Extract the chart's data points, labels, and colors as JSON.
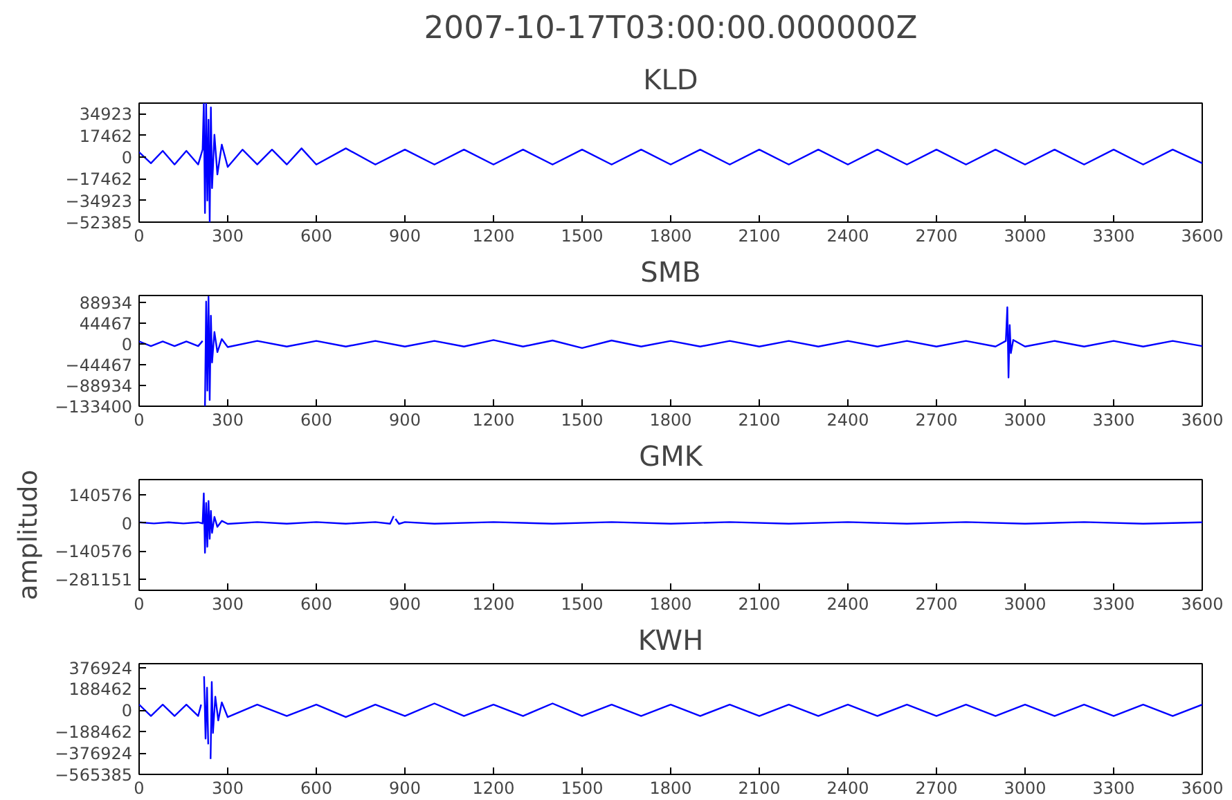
{
  "chart_data": [
    {
      "type": "line",
      "title": "KLD",
      "annotations": [
        "2007-10-17T03:00:00.000000Z"
      ],
      "xlim": [
        0,
        3600
      ],
      "xticks": [
        0,
        300,
        600,
        900,
        1200,
        1500,
        1800,
        2100,
        2400,
        2700,
        3000,
        3300,
        3600
      ],
      "ylim": [
        -52385,
        43400
      ],
      "yticks": [
        -52385,
        -34923,
        -17462,
        0,
        17462,
        34923
      ],
      "series": [
        {
          "color": "#0000ff",
          "x": [
            0,
            40,
            80,
            120,
            160,
            200,
            215,
            219,
            223,
            227,
            231,
            235,
            239,
            243,
            247,
            255,
            265,
            280,
            300,
            350,
            400,
            450,
            500,
            550,
            600,
            700,
            800,
            900,
            1000,
            1100,
            1200,
            1300,
            1400,
            1500,
            1600,
            1700,
            1800,
            1900,
            2000,
            2100,
            2200,
            2300,
            2400,
            2500,
            2600,
            2700,
            2800,
            2900,
            3000,
            3100,
            3200,
            3300,
            3400,
            3500,
            3600
          ],
          "values": [
            4000,
            -5000,
            5000,
            -6000,
            5000,
            -6000,
            6000,
            43000,
            -45000,
            43000,
            -35000,
            30000,
            -52000,
            40000,
            -25000,
            18000,
            -14000,
            10000,
            -8000,
            6000,
            -6000,
            6000,
            -6000,
            7000,
            -6000,
            7000,
            -6000,
            6000,
            -6000,
            6000,
            -6000,
            6000,
            -6000,
            6000,
            -6000,
            6000,
            -6000,
            6000,
            -6000,
            6000,
            -6000,
            6000,
            -6000,
            6000,
            -6000,
            6000,
            -6000,
            6000,
            -6000,
            6000,
            -6000,
            6000,
            -6000,
            6000,
            -5000
          ]
        }
      ]
    },
    {
      "type": "line",
      "title": "SMB",
      "xlim": [
        0,
        3600
      ],
      "xticks": [
        0,
        300,
        600,
        900,
        1200,
        1500,
        1800,
        2100,
        2400,
        2700,
        3000,
        3300,
        3600
      ],
      "ylim": [
        -133400,
        103000
      ],
      "yticks": [
        -133400,
        -88934,
        -44467,
        0,
        44467,
        88934
      ],
      "series": [
        {
          "color": "#0000ff",
          "x": [
            0,
            40,
            80,
            120,
            160,
            200,
            215,
            219,
            223,
            227,
            231,
            235,
            239,
            243,
            247,
            255,
            265,
            280,
            300,
            400,
            500,
            600,
            700,
            800,
            900,
            1000,
            1100,
            1200,
            1300,
            1400,
            1500,
            1600,
            1700,
            1800,
            1900,
            2000,
            2100,
            2200,
            2300,
            2400,
            2500,
            2600,
            2700,
            2800,
            2900,
            2935,
            2940,
            2944,
            2948,
            2952,
            2960,
            3000,
            3100,
            3200,
            3300,
            3400,
            3500,
            3600
          ],
          "values": [
            5000,
            -5000,
            5000,
            -5000,
            5000,
            -5000,
            6000,
            null,
            -133000,
            90000,
            -100000,
            100000,
            -120000,
            60000,
            -40000,
            25000,
            -18000,
            10000,
            -7000,
            6000,
            -6000,
            6000,
            -6000,
            6000,
            -6000,
            6000,
            -6000,
            8000,
            -6000,
            7000,
            -9000,
            7000,
            -6000,
            6000,
            -6000,
            6000,
            -6000,
            6000,
            -6000,
            6000,
            -6000,
            6000,
            -6000,
            6000,
            -6000,
            6000,
            78000,
            -72000,
            40000,
            -20000,
            8000,
            -6000,
            6000,
            -6000,
            6000,
            -6000,
            6000,
            -5000
          ]
        }
      ]
    },
    {
      "type": "line",
      "title": "GMK",
      "ylabel": "amplitudo",
      "xlim": [
        0,
        3600
      ],
      "xticks": [
        0,
        300,
        600,
        900,
        1200,
        1500,
        1800,
        2100,
        2400,
        2700,
        3000,
        3300,
        3600
      ],
      "ylim": [
        -338000,
        217000
      ],
      "yticks": [
        -281151,
        -140576,
        0,
        140576
      ],
      "series": [
        {
          "color": "#0000ff",
          "x": [
            0,
            50,
            100,
            150,
            200,
            215,
            219,
            223,
            227,
            231,
            235,
            239,
            243,
            247,
            255,
            265,
            280,
            300,
            400,
            500,
            600,
            700,
            800,
            850,
            862,
            865,
            868,
            880,
            900,
            1000,
            1200,
            1400,
            1600,
            1800,
            2000,
            2200,
            2400,
            2600,
            2800,
            3000,
            3200,
            3400,
            3600
          ],
          "values": [
            3000,
            -3000,
            3000,
            -3000,
            3000,
            -3000,
            148000,
            -150000,
            100000,
            -120000,
            110000,
            -80000,
            60000,
            -50000,
            30000,
            -20000,
            10000,
            -5000,
            4000,
            -4000,
            4000,
            -4000,
            4000,
            -4000,
            34000,
            null,
            20000,
            -5000,
            4000,
            -4000,
            4000,
            -4000,
            4000,
            -4000,
            4000,
            -4000,
            4000,
            -4000,
            4000,
            -4000,
            4000,
            -4000,
            3000
          ]
        }
      ]
    },
    {
      "type": "line",
      "title": "KWH",
      "xlim": [
        0,
        3600
      ],
      "xticks": [
        0,
        300,
        600,
        900,
        1200,
        1500,
        1800,
        2100,
        2400,
        2700,
        3000,
        3300,
        3600
      ],
      "ylim": [
        -565385,
        411000
      ],
      "yticks": [
        -565385,
        -376924,
        -188462,
        0,
        188462,
        376924
      ],
      "series": [
        {
          "color": "#0000ff",
          "x": [
            0,
            40,
            80,
            120,
            160,
            200,
            210,
            213,
            216,
            220,
            225,
            230,
            234,
            238,
            242,
            246,
            250,
            258,
            268,
            280,
            300,
            400,
            500,
            600,
            700,
            800,
            900,
            1000,
            1100,
            1200,
            1300,
            1400,
            1500,
            1600,
            1700,
            1800,
            1900,
            2000,
            2100,
            2200,
            2300,
            2400,
            2500,
            2600,
            2700,
            2800,
            2900,
            3000,
            3100,
            3200,
            3300,
            3400,
            3500,
            3600
          ],
          "values": [
            50000,
            -50000,
            50000,
            -50000,
            50000,
            -50000,
            50000,
            null,
            null,
            300000,
            -250000,
            200000,
            -300000,
            null,
            -430000,
            250000,
            -200000,
            120000,
            -90000,
            70000,
            -60000,
            50000,
            -50000,
            50000,
            -60000,
            50000,
            -50000,
            60000,
            -50000,
            50000,
            -50000,
            60000,
            -50000,
            50000,
            -50000,
            50000,
            -50000,
            50000,
            -50000,
            50000,
            -50000,
            50000,
            -50000,
            50000,
            -50000,
            50000,
            -50000,
            50000,
            -50000,
            50000,
            -50000,
            50000,
            -50000,
            50000
          ]
        }
      ]
    }
  ]
}
